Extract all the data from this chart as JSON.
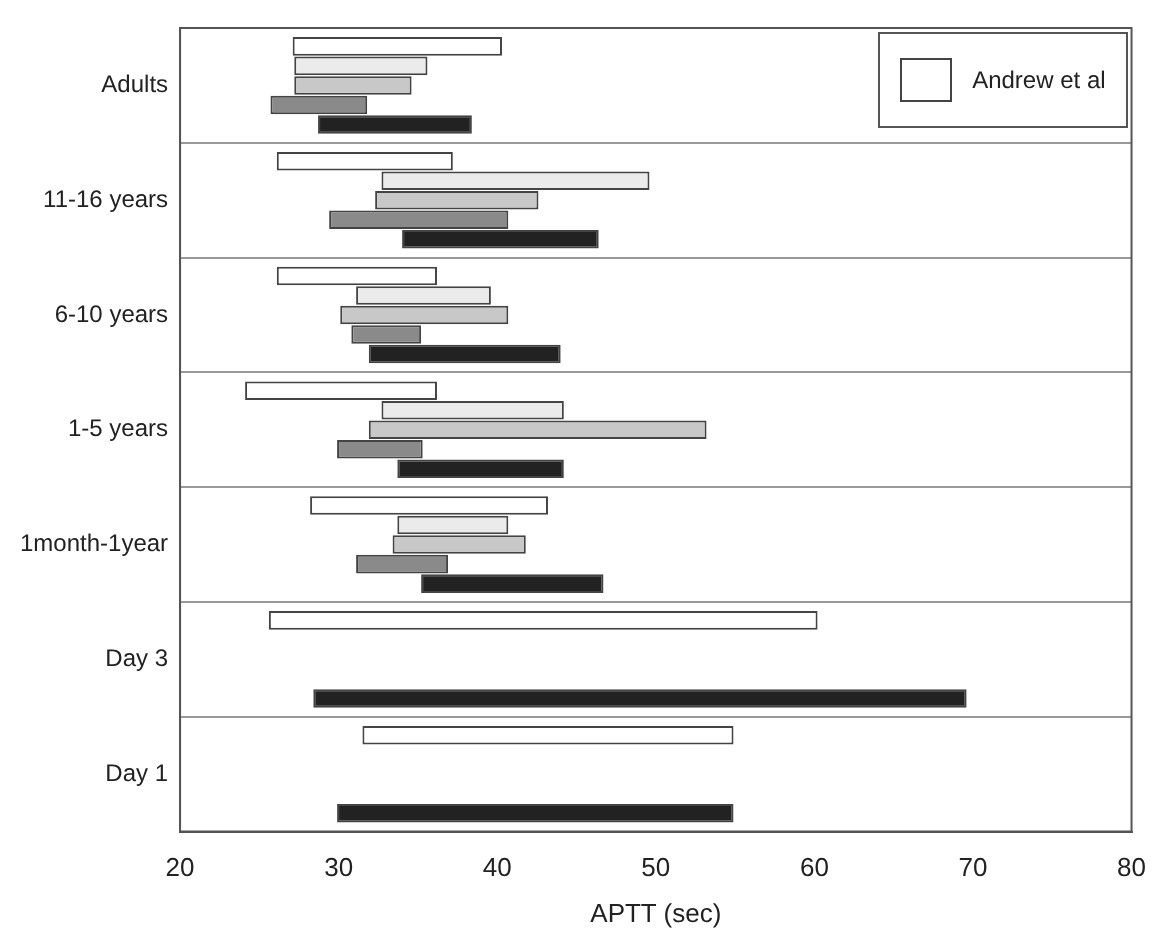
{
  "chart_data": {
    "type": "bar",
    "orientation": "horizontal",
    "xlabel": "APTT (sec)",
    "categories": [
      "Adults",
      "11-16 years",
      "6-10 years",
      "1-5 years",
      "1month-1year",
      "Day 3",
      "Day 1"
    ],
    "series": [
      {
        "name": "Andrew et al",
        "color": "#ffffff",
        "base": [
          27.1,
          26.1,
          26.1,
          24.1,
          28.2,
          25.6,
          31.5
        ],
        "values": [
          13.2,
          11.1,
          10.1,
          12.1,
          15.0,
          34.6,
          23.4
        ]
      },
      {
        "color": "#ebebeb",
        "base": [
          27.2,
          32.7,
          31.1,
          32.7,
          33.7,
          null,
          null
        ],
        "values": [
          8.4,
          16.9,
          8.5,
          11.5,
          7.0,
          null,
          null
        ]
      },
      {
        "color": "#c8c8c8",
        "base": [
          27.2,
          32.3,
          30.1,
          31.9,
          33.4,
          null,
          null
        ],
        "values": [
          7.4,
          10.3,
          10.6,
          21.3,
          8.4,
          null,
          null
        ]
      },
      {
        "color": "#8a8a8a",
        "base": [
          25.7,
          29.4,
          30.8,
          29.9,
          31.1,
          null,
          null
        ],
        "values": [
          6.1,
          11.3,
          4.4,
          5.4,
          5.8,
          null,
          null
        ]
      },
      {
        "color": "#222222",
        "base": [
          28.7,
          34.0,
          31.9,
          33.7,
          35.2,
          28.4,
          29.9
        ],
        "values": [
          9.7,
          12.4,
          12.1,
          10.5,
          11.5,
          41.2,
          25.0
        ]
      }
    ],
    "xlim": [
      20,
      80
    ],
    "xticks": [
      20,
      30,
      40,
      50,
      60,
      70,
      80
    ],
    "grid": "y",
    "legend": "top right"
  }
}
